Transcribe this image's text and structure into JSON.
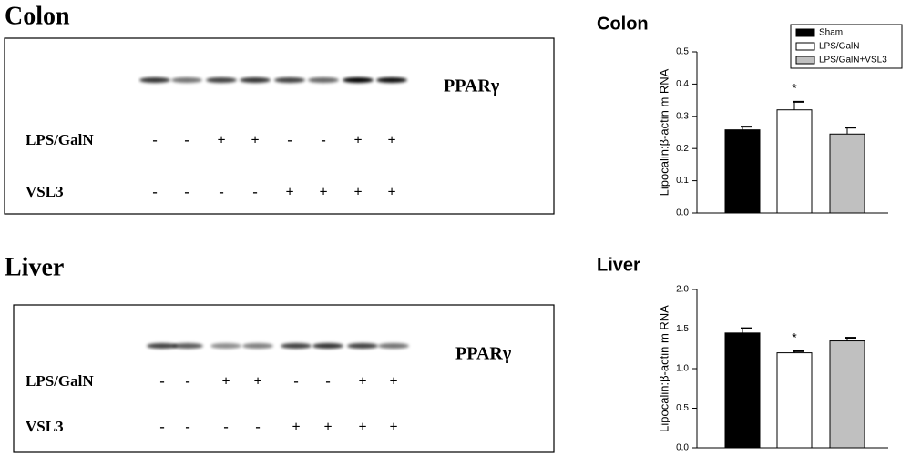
{
  "blots": [
    {
      "title": "Colon",
      "protein": "PPARγ",
      "rows": [
        {
          "label": "LPS/GalN",
          "signs": [
            "-",
            "-",
            "+",
            "+",
            "-",
            "-",
            "+",
            "+"
          ]
        },
        {
          "label": "VSL3",
          "signs": [
            "-",
            "-",
            "-",
            "-",
            "+",
            "+",
            "+",
            "+"
          ]
        }
      ]
    },
    {
      "title": "Liver",
      "protein": "PPARγ",
      "rows": [
        {
          "label": "LPS/GalN",
          "signs": [
            "-",
            "-",
            "+",
            "+",
            "-",
            "-",
            "+",
            "+"
          ]
        },
        {
          "label": "VSL3",
          "signs": [
            "-",
            "-",
            "-",
            "-",
            "+",
            "+",
            "+",
            "+"
          ]
        }
      ]
    }
  ],
  "chart_data": [
    {
      "type": "bar",
      "title": "Colon",
      "y_label": "Lipocalin:β-actin m RNA",
      "ylim": [
        0,
        0.5
      ],
      "yticks": [
        {
          "value": 0,
          "label": "0.0"
        },
        0.1,
        0.2,
        0.3,
        0.4,
        0.5
      ],
      "legend": "top-right",
      "series": [
        {
          "name": "Sham",
          "color": "#000000",
          "values": [
            0.258
          ],
          "errors": [
            0.01
          ]
        },
        {
          "name": "LPS/GalN",
          "color": "#ffffff",
          "values": [
            0.32
          ],
          "errors": [
            0.025
          ],
          "annotation": "*"
        },
        {
          "name": "LPS/GalN+VSL3",
          "color": "#c0c0c0",
          "values": [
            0.245
          ],
          "errors": [
            0.02
          ]
        }
      ]
    },
    {
      "type": "bar",
      "title": "Liver",
      "y_label": "Lipocalin:β-actin m RNA",
      "ylim": [
        0,
        2
      ],
      "yticks": [
        {
          "value": 0,
          "label": "0.0"
        },
        0.5,
        {
          "value": 1,
          "label": "1.0"
        },
        1.5,
        {
          "value": 2,
          "label": "2.0"
        }
      ],
      "series": [
        {
          "color": "#000000",
          "values": [
            1.45
          ],
          "errors": [
            0.06
          ]
        },
        {
          "color": "#ffffff",
          "values": [
            1.2
          ],
          "errors": [
            0.02
          ],
          "annotation": "*"
        },
        {
          "color": "#c0c0c0",
          "values": [
            1.35
          ],
          "errors": [
            0.04
          ]
        }
      ]
    }
  ]
}
